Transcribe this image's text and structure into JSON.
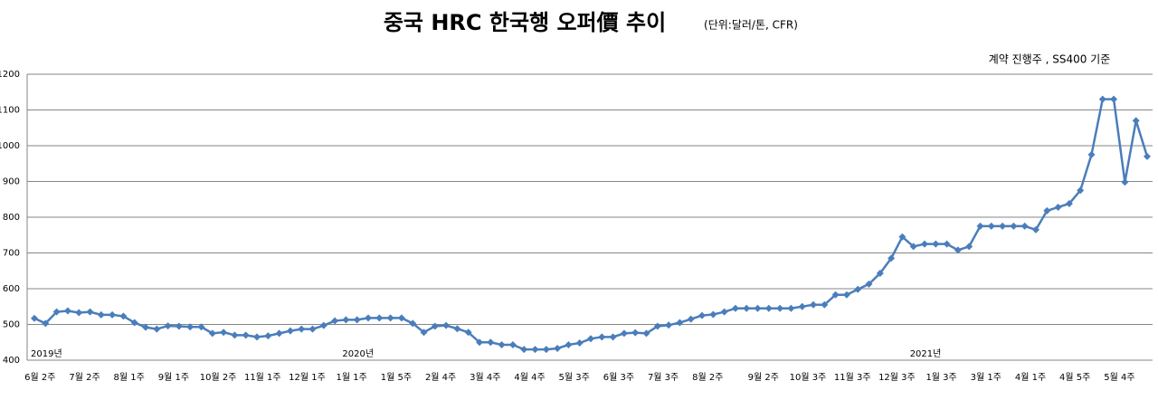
{
  "chart_data": {
    "type": "line",
    "title": "중국 HRC 한국행 오퍼價 추이",
    "subtitle": "(단위:달러/톤, CFR)",
    "annotation": "계약 진행주 , SS400 기준",
    "year_labels": [
      "2019년",
      "2020년",
      "2021년"
    ],
    "categories": [
      null,
      "6월 2주",
      null,
      null,
      null,
      "7월 2주",
      null,
      null,
      null,
      "8월 1주",
      null,
      null,
      null,
      "9월 1주",
      null,
      null,
      null,
      "10월 2주",
      null,
      null,
      null,
      "11월 1주",
      null,
      null,
      null,
      "12월 1주",
      null,
      null,
      null,
      "1월 1주",
      null,
      null,
      null,
      "1월 5주",
      null,
      null,
      null,
      "2월 4주",
      null,
      null,
      null,
      "3월 4주",
      null,
      null,
      null,
      "4월 4주",
      null,
      null,
      null,
      "5월 3주",
      null,
      null,
      null,
      "6월 3주",
      null,
      null,
      null,
      "7월 3주",
      null,
      null,
      null,
      "8월 2주",
      null,
      null,
      null,
      null,
      "9월 2주",
      null,
      null,
      null,
      "10월 3주",
      null,
      null,
      null,
      "11월 3주",
      null,
      null,
      null,
      "12월 3주",
      null,
      null,
      null,
      "1월 3주",
      null,
      null,
      null,
      "3월 1주",
      null,
      null,
      null,
      "4월 1주",
      null,
      null,
      null,
      "4월 5주",
      null,
      null,
      null,
      "5월 4주",
      null,
      null
    ],
    "series": [
      {
        "name": "오퍼가",
        "color": "#4a7ebb",
        "values": [
          517,
          503,
          535,
          538,
          533,
          535,
          527,
          527,
          523,
          505,
          492,
          487,
          496,
          495,
          493,
          493,
          475,
          478,
          470,
          470,
          465,
          468,
          475,
          482,
          487,
          487,
          497,
          510,
          513,
          513,
          518,
          518,
          518,
          518,
          503,
          478,
          495,
          497,
          488,
          478,
          450,
          450,
          443,
          443,
          430,
          430,
          430,
          433,
          443,
          448,
          460,
          465,
          465,
          475,
          477,
          475,
          495,
          498,
          505,
          515,
          525,
          528,
          535,
          545,
          545,
          545,
          545,
          545,
          545,
          550,
          555,
          555,
          583,
          583,
          598,
          613,
          643,
          685,
          745,
          718,
          725,
          725,
          725,
          708,
          718,
          775,
          775,
          775,
          775,
          775,
          765,
          818,
          828,
          838,
          875,
          975,
          1130,
          1130,
          898,
          1070,
          970
        ]
      }
    ],
    "ylim": [
      400,
      1200
    ],
    "yticks": [
      400,
      500,
      600,
      700,
      800,
      900,
      1000,
      1100,
      1200
    ],
    "grid": true
  }
}
